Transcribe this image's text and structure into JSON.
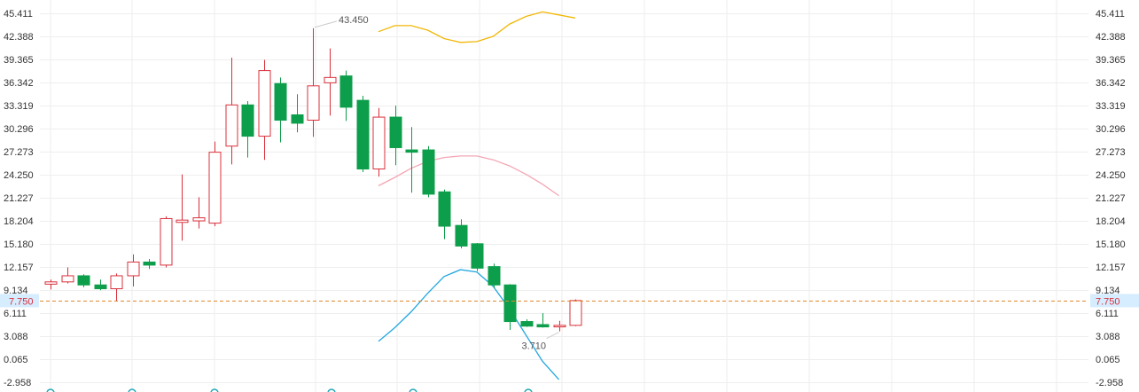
{
  "chart_data": {
    "type": "candlestick",
    "ylim": [
      -2.958,
      45.411
    ],
    "y_ticks": [
      "45.411",
      "42.388",
      "39.365",
      "36.342",
      "33.319",
      "30.296",
      "27.273",
      "24.250",
      "21.227",
      "18.204",
      "15.180",
      "12.157",
      "9.134",
      "6.111",
      "3.088",
      "0.065",
      "-2.958"
    ],
    "last_price": "7.750",
    "annotations": {
      "high": "43.450",
      "low": "3.710"
    },
    "colors": {
      "up": "#d9303b",
      "down": "#0c9e4a",
      "last_line": "#e08a2c",
      "last_bg": "#d6ecff",
      "grid": "#eeeeee"
    },
    "candles": [
      {
        "open": 9.9,
        "close": 10.2,
        "high": 10.5,
        "low": 9.2
      },
      {
        "open": 10.2,
        "close": 11.0,
        "high": 12.1,
        "low": 10.0
      },
      {
        "open": 11.0,
        "close": 9.8,
        "high": 11.2,
        "low": 9.5
      },
      {
        "open": 9.8,
        "close": 9.3,
        "high": 10.5,
        "low": 9.1
      },
      {
        "open": 9.3,
        "close": 11.0,
        "high": 11.3,
        "low": 7.7
      },
      {
        "open": 11.0,
        "close": 12.8,
        "high": 13.8,
        "low": 9.6
      },
      {
        "open": 12.8,
        "close": 12.4,
        "high": 13.2,
        "low": 11.9
      },
      {
        "open": 12.4,
        "close": 18.5,
        "high": 18.8,
        "low": 12.1
      },
      {
        "open": 18.0,
        "close": 18.3,
        "high": 24.3,
        "low": 15.6
      },
      {
        "open": 18.2,
        "close": 18.6,
        "high": 21.3,
        "low": 17.2
      },
      {
        "open": 17.9,
        "close": 27.2,
        "high": 28.6,
        "low": 17.5
      },
      {
        "open": 28.0,
        "close": 33.4,
        "high": 39.6,
        "low": 25.6
      },
      {
        "open": 33.4,
        "close": 29.3,
        "high": 33.9,
        "low": 26.5
      },
      {
        "open": 29.3,
        "close": 37.9,
        "high": 39.3,
        "low": 26.2
      },
      {
        "open": 36.2,
        "close": 31.4,
        "high": 37.0,
        "low": 28.5
      },
      {
        "open": 32.1,
        "close": 31.0,
        "high": 34.8,
        "low": 29.8
      },
      {
        "open": 31.4,
        "close": 35.9,
        "high": 43.45,
        "low": 29.2
      },
      {
        "open": 36.3,
        "close": 37.0,
        "high": 40.8,
        "low": 32.0
      },
      {
        "open": 37.2,
        "close": 33.1,
        "high": 37.9,
        "low": 31.3
      },
      {
        "open": 34.0,
        "close": 25.0,
        "high": 34.6,
        "low": 24.6
      },
      {
        "open": 25.0,
        "close": 31.8,
        "high": 33.0,
        "low": 24.0
      },
      {
        "open": 31.8,
        "close": 27.8,
        "high": 33.3,
        "low": 25.5
      },
      {
        "open": 27.5,
        "close": 27.2,
        "high": 30.5,
        "low": 21.9
      },
      {
        "open": 27.5,
        "close": 21.7,
        "high": 28.0,
        "low": 21.3
      },
      {
        "open": 22.0,
        "close": 17.5,
        "high": 22.3,
        "low": 15.8
      },
      {
        "open": 17.6,
        "close": 14.9,
        "high": 18.4,
        "low": 14.6
      },
      {
        "open": 15.2,
        "close": 12.0,
        "high": 15.3,
        "low": 11.6
      },
      {
        "open": 12.2,
        "close": 9.8,
        "high": 12.6,
        "low": 9.4
      },
      {
        "open": 9.8,
        "close": 5.0,
        "high": 9.9,
        "low": 3.9
      },
      {
        "open": 5.0,
        "close": 4.4,
        "high": 5.3,
        "low": 4.3
      },
      {
        "open": 4.6,
        "close": 4.3,
        "high": 6.1,
        "low": 4.2
      },
      {
        "open": 4.3,
        "close": 4.5,
        "high": 5.1,
        "low": 3.71
      },
      {
        "open": 4.5,
        "close": 7.75,
        "high": 7.9,
        "low": 4.4
      }
    ],
    "indicator_lines": [
      {
        "color": "#f2b705",
        "start": 20,
        "values": [
          43.0,
          43.8,
          43.8,
          43.2,
          42.1,
          41.6,
          41.7,
          42.4,
          44.0,
          45.0,
          45.6,
          45.2,
          44.8
        ]
      },
      {
        "color": "#f4a6b4",
        "start": 20,
        "values": [
          22.8,
          23.9,
          25.1,
          26.0,
          26.5,
          26.7,
          26.7,
          26.2,
          25.4,
          24.3,
          23.0,
          21.5
        ]
      },
      {
        "color": "#23a7e0",
        "start": 20,
        "values": [
          2.4,
          4.2,
          6.3,
          8.7,
          10.9,
          11.8,
          11.5,
          9.6,
          6.6,
          3.2,
          -0.2,
          -2.6
        ]
      }
    ]
  }
}
